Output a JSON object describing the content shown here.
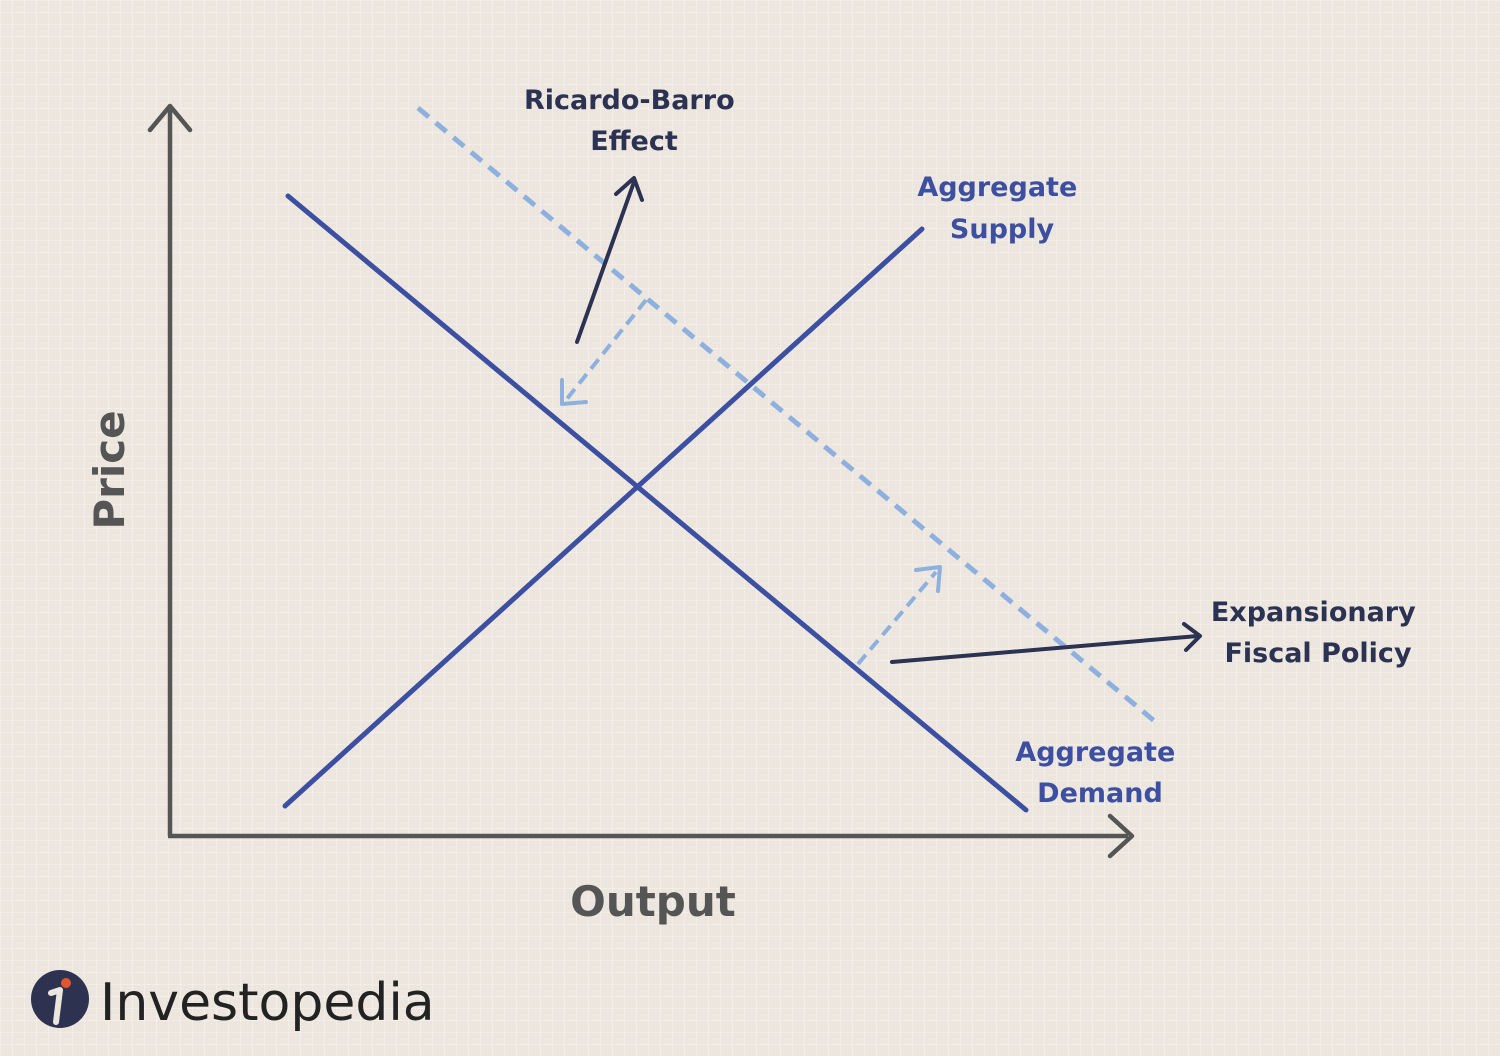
{
  "axes": {
    "x_label": "Output",
    "y_label": "Price"
  },
  "labels": {
    "ricardo_barro": [
      "Ricardo-Barro",
      "Effect"
    ],
    "aggregate_supply": [
      "Aggregate",
      "Supply"
    ],
    "aggregate_demand": [
      "Aggregate",
      "Demand"
    ],
    "expansionary": [
      "Expansionary",
      "Fiscal Policy"
    ]
  },
  "brand": {
    "name": "Investopedia"
  },
  "colors": {
    "curve": "#3d4fa0",
    "shifted_curve": "#8eb0df",
    "annotation": "#2b3252",
    "axis": "#555555"
  }
}
